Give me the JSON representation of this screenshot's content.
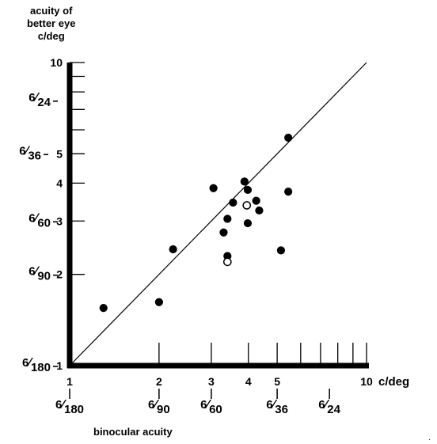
{
  "chart_data": {
    "type": "scatter",
    "x_scale": "log",
    "y_scale": "log",
    "xlim": [
      1,
      10
    ],
    "ylim": [
      1,
      10
    ],
    "ylabel_lines": [
      "acuity of",
      "better eye",
      "c/deg"
    ],
    "xlabel": "binocular acuity",
    "x_unit": "c/deg",
    "x_tick_labels": [
      {
        "value": 1,
        "label": "1"
      },
      {
        "value": 2,
        "label": "2"
      },
      {
        "value": 3,
        "label": "3"
      },
      {
        "value": 4,
        "label": "4"
      },
      {
        "value": 5,
        "label": "5"
      },
      {
        "value": 10,
        "label": "10"
      }
    ],
    "x_minor_ticks": [
      2,
      3,
      4,
      5,
      6,
      7,
      8,
      9
    ],
    "x_snellen": [
      {
        "value": 1,
        "num": "6",
        "den": "180"
      },
      {
        "value": 2,
        "num": "6",
        "den": "90"
      },
      {
        "value": 3,
        "num": "6",
        "den": "60"
      },
      {
        "value": 5,
        "num": "6",
        "den": "36"
      },
      {
        "value": 7.5,
        "num": "6",
        "den": "24"
      }
    ],
    "y_tick_labels": [
      {
        "value": 1,
        "label": "1"
      },
      {
        "value": 2,
        "label": "2"
      },
      {
        "value": 3,
        "label": "3"
      },
      {
        "value": 4,
        "label": "4"
      },
      {
        "value": 5,
        "label": "5"
      },
      {
        "value": 10,
        "label": "10"
      }
    ],
    "y_minor_ticks": [
      2,
      3,
      4,
      5,
      6,
      7,
      8,
      9
    ],
    "y_snellen": [
      {
        "value": 1,
        "num": "6",
        "den": "180"
      },
      {
        "value": 2,
        "num": "6",
        "den": "90"
      },
      {
        "value": 3,
        "num": "6",
        "den": "60"
      },
      {
        "value": 5,
        "num": "6",
        "den": "36"
      },
      {
        "value": 7.5,
        "num": "6",
        "den": "24"
      }
    ],
    "reference_line": {
      "from": [
        1,
        1
      ],
      "to": [
        10,
        10
      ]
    },
    "points": [
      {
        "x": 1.3,
        "y": 1.55,
        "filled": true
      },
      {
        "x": 2.0,
        "y": 1.62,
        "filled": true
      },
      {
        "x": 2.23,
        "y": 2.42,
        "filled": true
      },
      {
        "x": 3.05,
        "y": 3.85,
        "filled": true
      },
      {
        "x": 3.3,
        "y": 2.75,
        "filled": true
      },
      {
        "x": 3.4,
        "y": 3.05,
        "filled": true
      },
      {
        "x": 3.4,
        "y": 2.3,
        "filled": true
      },
      {
        "x": 3.55,
        "y": 3.45,
        "filled": true
      },
      {
        "x": 3.88,
        "y": 4.05,
        "filled": true
      },
      {
        "x": 3.98,
        "y": 3.8,
        "filled": true
      },
      {
        "x": 3.98,
        "y": 2.95,
        "filled": true
      },
      {
        "x": 4.25,
        "y": 3.5,
        "filled": true
      },
      {
        "x": 4.35,
        "y": 3.25,
        "filled": true
      },
      {
        "x": 5.15,
        "y": 2.4,
        "filled": true
      },
      {
        "x": 5.45,
        "y": 5.65,
        "filled": true
      },
      {
        "x": 5.45,
        "y": 3.75,
        "filled": true
      },
      {
        "x": 3.4,
        "y": 2.2,
        "filled": false
      },
      {
        "x": 3.95,
        "y": 3.38,
        "filled": false
      }
    ]
  },
  "page_mark": "."
}
